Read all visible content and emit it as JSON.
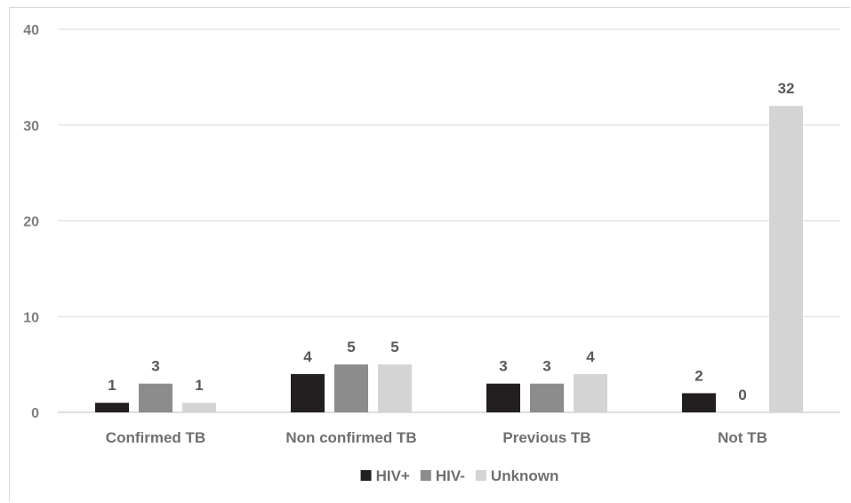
{
  "chart_data": {
    "type": "bar",
    "categories": [
      "Confirmed TB",
      "Non confirmed TB",
      "Previous TB",
      "Not TB"
    ],
    "series": [
      {
        "name": "HIV+",
        "values": [
          1,
          4,
          3,
          2
        ],
        "color": "#231f20"
      },
      {
        "name": "HIV-",
        "values": [
          3,
          5,
          3,
          0
        ],
        "color": "#8c8c8c"
      },
      {
        "name": "Unknown",
        "values": [
          1,
          5,
          4,
          32
        ],
        "color": "#d4d4d4"
      }
    ],
    "yticks": [
      "0",
      "10",
      "20",
      "30",
      "40"
    ],
    "ylim": [
      0,
      40
    ],
    "grid": true,
    "legend_position": "bottom",
    "data_labels": true
  }
}
